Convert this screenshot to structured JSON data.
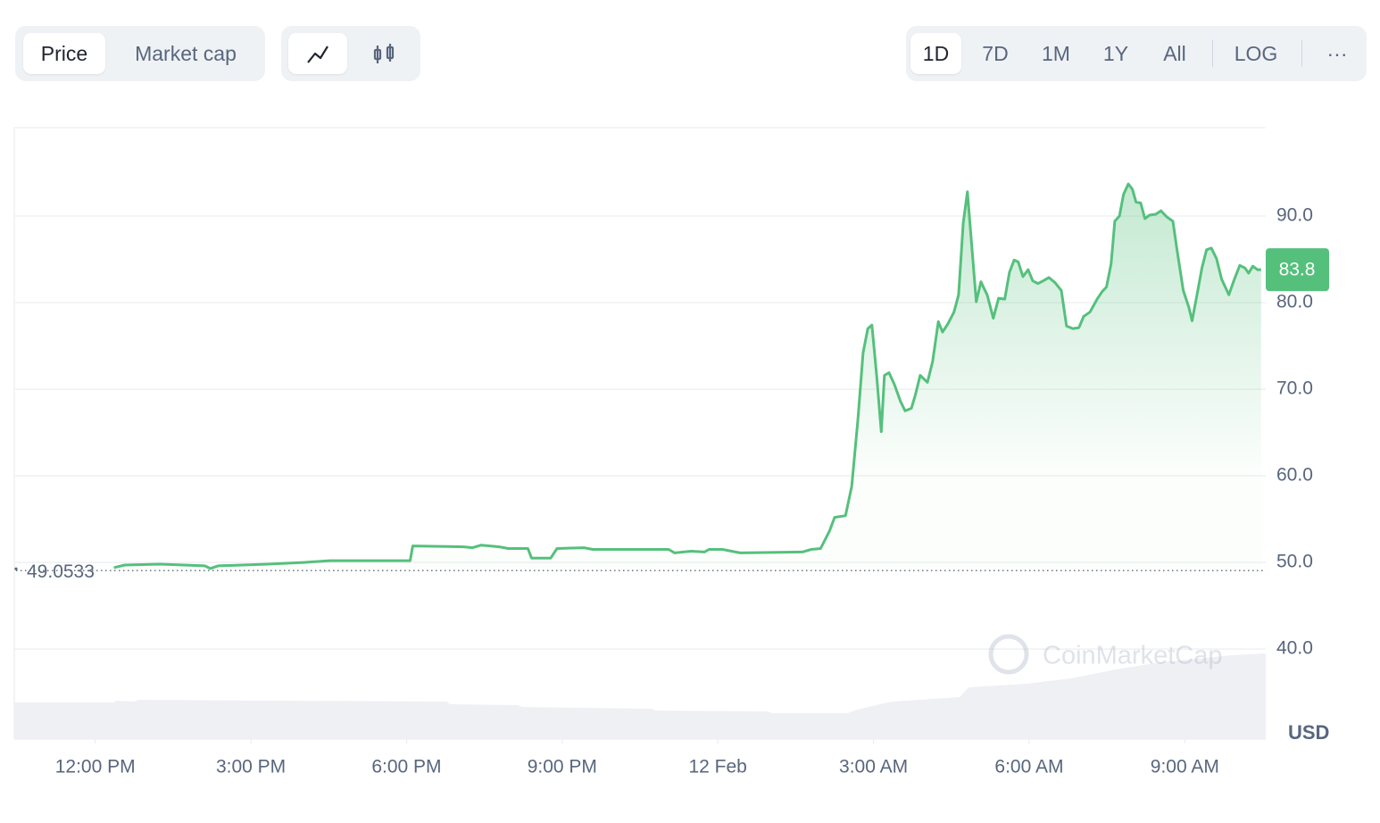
{
  "toolbar": {
    "view": [
      "Price",
      "Market cap"
    ],
    "ranges": [
      "1D",
      "7D",
      "1M",
      "1Y",
      "All"
    ],
    "scale": "LOG",
    "more": "···"
  },
  "chart_data": {
    "type": "line",
    "watermark": "CoinMarketCap",
    "y_label": "USD",
    "color": "#55c07c",
    "baseline": 49.0533,
    "grid": true,
    "xlim": [
      10.44,
      34.56
    ],
    "ylim": [
      29.6,
      100.2
    ],
    "xticks": [
      {
        "value": 12,
        "label": "12:00 PM"
      },
      {
        "value": 15,
        "label": "3:00 PM"
      },
      {
        "value": 18,
        "label": "6:00 PM"
      },
      {
        "value": 21,
        "label": "9:00 PM"
      },
      {
        "value": 24,
        "label": "12 Feb"
      },
      {
        "value": 27,
        "label": "3:00 AM"
      },
      {
        "value": 30,
        "label": "6:00 AM"
      },
      {
        "value": 33,
        "label": "9:00 AM"
      }
    ],
    "yticks": [
      {
        "value": 40,
        "label": "40.0"
      },
      {
        "value": 50,
        "label": "50.0"
      },
      {
        "value": 60,
        "label": "60.0"
      },
      {
        "value": 70,
        "label": "70.0"
      },
      {
        "value": 80,
        "label": "80.0"
      },
      {
        "value": 90,
        "label": "90.0"
      }
    ],
    "x": [
      12.36,
      12.57,
      13.25,
      14.11,
      14.22,
      14.37,
      15.32,
      16.01,
      16.52,
      18.07,
      18.12,
      19.1,
      19.27,
      19.44,
      19.79,
      19.96,
      20.34,
      20.41,
      20.78,
      20.9,
      21.42,
      21.59,
      23.05,
      23.17,
      23.48,
      23.74,
      23.83,
      24.09,
      24.43,
      25.63,
      25.8,
      25.98,
      26.15,
      26.25,
      26.46,
      26.58,
      26.7,
      26.8,
      26.89,
      26.97,
      27.06,
      27.15,
      27.21,
      27.3,
      27.4,
      27.52,
      27.61,
      27.73,
      27.8,
      27.9,
      28.04,
      28.14,
      28.25,
      28.33,
      28.43,
      28.55,
      28.64,
      28.73,
      28.81,
      28.9,
      28.98,
      29.07,
      29.19,
      29.31,
      29.41,
      29.53,
      29.62,
      29.71,
      29.79,
      29.88,
      29.98,
      30.07,
      30.17,
      30.27,
      30.38,
      30.5,
      30.62,
      30.72,
      30.84,
      30.96,
      31.05,
      31.17,
      31.31,
      31.41,
      31.49,
      31.58,
      31.65,
      31.74,
      31.82,
      31.91,
      31.99,
      32.06,
      32.15,
      32.23,
      32.32,
      32.44,
      32.54,
      32.65,
      32.77,
      32.85,
      32.97,
      33.08,
      33.14,
      33.25,
      33.33,
      33.42,
      33.51,
      33.61,
      33.71,
      33.85,
      33.95,
      34.06,
      34.16,
      34.23,
      34.31,
      34.4,
      34.47
    ],
    "values": [
      49.4,
      49.7,
      49.8,
      49.6,
      49.3,
      49.6,
      49.8,
      50.0,
      50.2,
      50.2,
      51.9,
      51.8,
      51.7,
      52.0,
      51.8,
      51.6,
      51.6,
      50.5,
      50.5,
      51.6,
      51.7,
      51.5,
      51.5,
      51.1,
      51.3,
      51.2,
      51.5,
      51.5,
      51.1,
      51.2,
      51.5,
      51.6,
      53.6,
      55.2,
      55.4,
      58.8,
      66.5,
      74.2,
      77.0,
      77.4,
      71.6,
      65.1,
      71.6,
      71.9,
      70.6,
      68.6,
      67.5,
      67.8,
      69.2,
      71.6,
      70.8,
      73.2,
      77.8,
      76.6,
      77.5,
      78.9,
      80.9,
      89.2,
      92.8,
      86.1,
      80.1,
      82.4,
      80.9,
      78.2,
      80.5,
      80.4,
      83.5,
      84.9,
      84.7,
      83.0,
      83.8,
      82.5,
      82.2,
      82.5,
      82.9,
      82.3,
      81.4,
      77.3,
      77.0,
      77.1,
      78.4,
      78.9,
      80.4,
      81.3,
      81.8,
      84.5,
      89.4,
      90.0,
      92.5,
      93.7,
      93.1,
      91.6,
      91.5,
      89.7,
      90.1,
      90.2,
      90.6,
      89.9,
      89.4,
      86.1,
      81.4,
      79.4,
      77.9,
      81.4,
      84.0,
      86.1,
      86.3,
      85.1,
      82.7,
      80.9,
      82.6,
      84.3,
      84.0,
      83.4,
      84.2,
      83.8,
      83.8
    ]
  }
}
